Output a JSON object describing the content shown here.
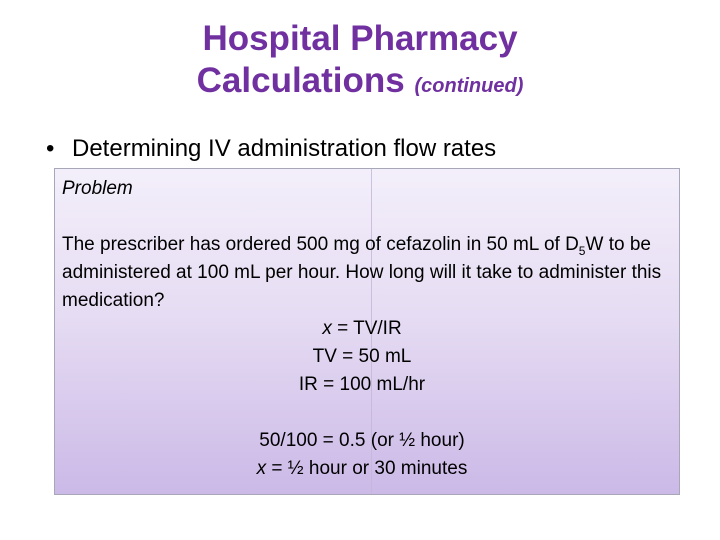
{
  "slide": {
    "title_line1": "Hospital Pharmacy",
    "title_line2": "Calculations",
    "title_suffix": "(continued)",
    "bullet_symbol": "•",
    "bullet_text": "Determining IV administration flow rates"
  },
  "problem": {
    "label": "Problem",
    "text_part1": "The prescriber has ordered 500 mg of cefazolin in 50 mL of D",
    "subscript": "5",
    "text_part2": "W to be administered at 100 mL per hour.  How long will it take to administer this medication?",
    "formula_var": "x",
    "formula_rest": " = TV/IR",
    "tv_line": "TV = 50 mL",
    "ir_line": "IR = 100 mL/hr",
    "calc_line": "50/100 = 0.5 (or ½ hour)",
    "answer_var": "x",
    "answer_rest": " = ½ hour or 30 minutes"
  },
  "colors": {
    "title": "#7030a0",
    "box_top": "#f3effa",
    "box_bottom": "#cbb9e7"
  }
}
